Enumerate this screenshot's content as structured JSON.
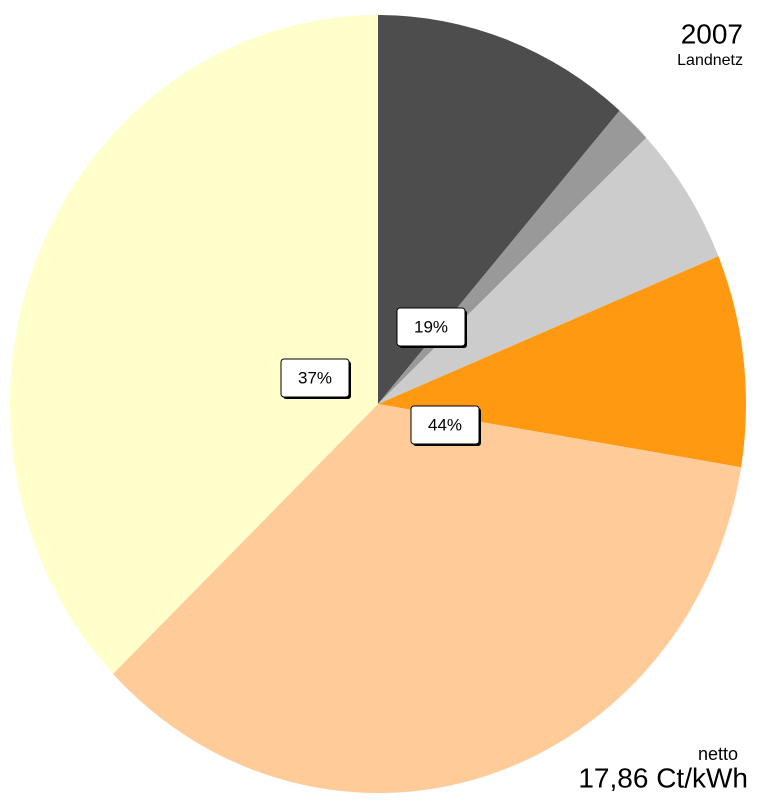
{
  "chart_data": {
    "type": "pie",
    "title": "2007",
    "subtitle": "Landnetz",
    "note_top": "netto",
    "note_bottom": "17,86 Ct/kWh",
    "values": [
      11.4,
      1.6,
      5.8,
      8.8,
      35.2,
      37.2
    ],
    "colors": [
      "#4d4d4d",
      "#999999",
      "#cccccc",
      "#ff9912",
      "#ffcc99",
      "#ffffcc"
    ],
    "groups": [
      {
        "value": 19,
        "label": "19%"
      },
      {
        "value": 44,
        "label": "44%"
      },
      {
        "value": 37,
        "label": "37%"
      }
    ]
  }
}
